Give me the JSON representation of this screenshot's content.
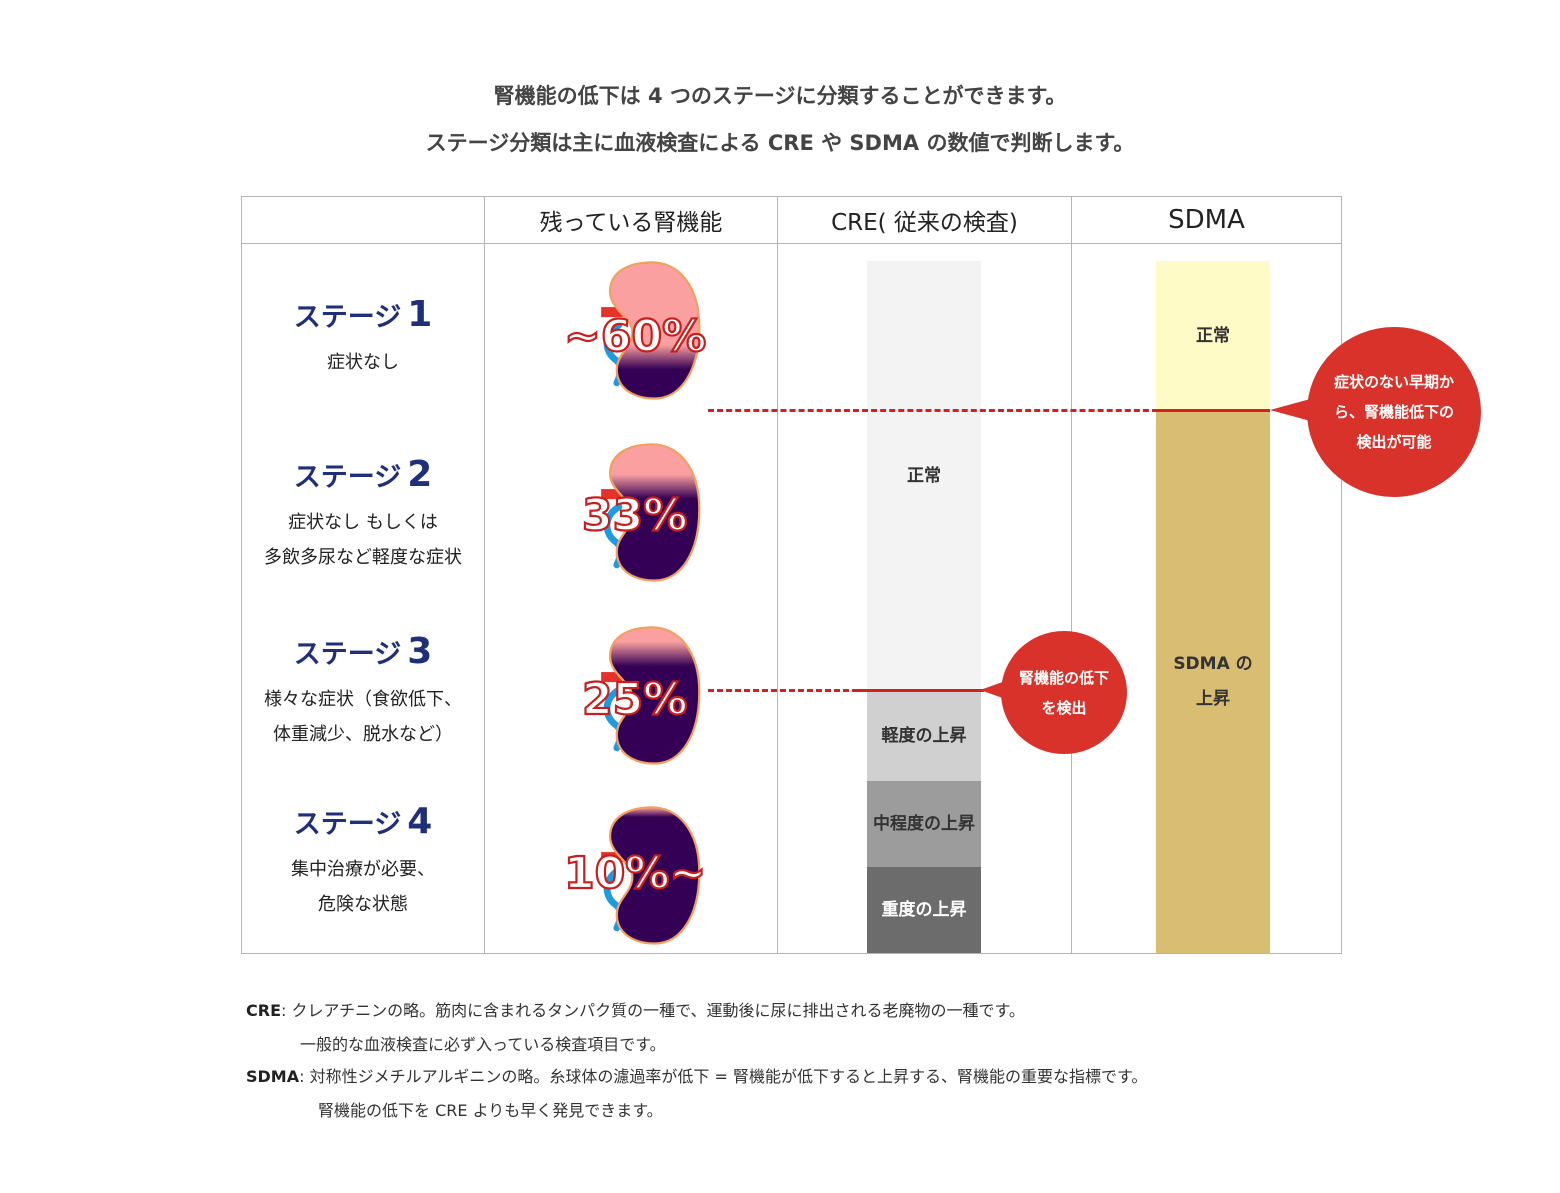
{
  "intro": {
    "line1": "腎機能の低下は 4 つのステージに分類することができます。",
    "line2": "ステージ分類は主に血液検査による CRE や SDMA の数値で判断します。"
  },
  "table": {
    "headers": {
      "stage": "",
      "remaining": "残っている腎機能",
      "cre": "CRE( 従来の検査)",
      "sdma": "SDMA"
    },
    "stages": [
      {
        "label": "ステージ",
        "number": "1",
        "description": [
          "症状なし"
        ],
        "remaining": "~60%",
        "remaining_fraction": 0.6
      },
      {
        "label": "ステージ",
        "number": "2",
        "description": [
          "症状なし もしくは",
          "多飲多尿など軽度な症状"
        ],
        "remaining": "33%",
        "remaining_fraction": 0.33
      },
      {
        "label": "ステージ",
        "number": "3",
        "description": [
          "様々な症状（食欲低下、",
          "体重減少、脱水など）"
        ],
        "remaining": "25%",
        "remaining_fraction": 0.25
      },
      {
        "label": "ステージ",
        "number": "4",
        "description": [
          "集中治療が必要、",
          "危険な状態"
        ],
        "remaining": "10%~",
        "remaining_fraction": 0.1
      }
    ],
    "cre_bar": [
      {
        "label": "正常",
        "color": "#f3f3f3"
      },
      {
        "label": "軽度の上昇",
        "color": "#d0d0d0"
      },
      {
        "label": "中程度の上昇",
        "color": "#9c9c9c"
      },
      {
        "label": "重度の上昇",
        "color": "#6c6c6c"
      }
    ],
    "sdma_bar": [
      {
        "label": "正常",
        "color": "#fefbc7"
      },
      {
        "label": "SDMA の上昇",
        "color": "#d8bd72"
      }
    ]
  },
  "callouts": {
    "sdma": "症状のない早期から、腎機能低下の検出が可能",
    "cre": "腎機能の低下を検出"
  },
  "notes": [
    {
      "term": "CRE",
      "lines": [
        "クレアチニンの略。筋肉に含まれるタンパク質の一種で、運動後に尿に排出される老廃物の一種です。",
        "一般的な血液検査に必ず入っている検査項目です。"
      ]
    },
    {
      "term": "SDMA",
      "lines": [
        "対称性ジメチルアルギニンの略。糸球体の濾過率が低下 = 腎機能が低下すると上昇する、腎機能の重要な指標です。",
        "腎機能の低下を CRE よりも早く発見できます。"
      ]
    }
  ],
  "colors": {
    "accent_red": "#d9322b",
    "stage_blue": "#1f2f7a",
    "kidney_healthy": "#fba0a0",
    "kidney_damaged": "#340055"
  }
}
